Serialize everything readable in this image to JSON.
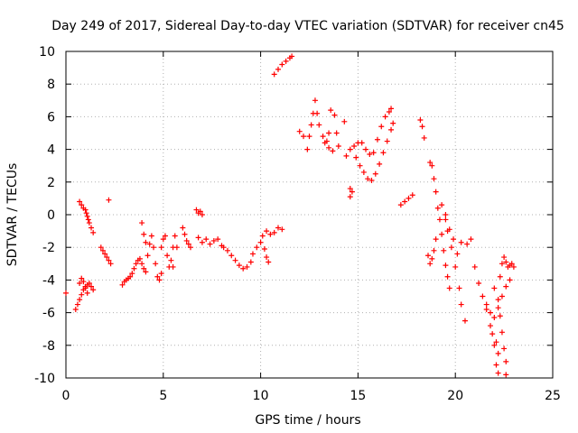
{
  "chart_data": {
    "type": "scatter",
    "title": "Day 249 of 2017, Sidereal Day-to-day VTEC variation (SDTVAR) for receiver cn45",
    "xlabel": "GPS time / hours",
    "ylabel": "SDTVAR / TECUs",
    "xlim": [
      0,
      25
    ],
    "ylim": [
      -10,
      10
    ],
    "xticks": [
      0,
      5,
      10,
      15,
      20,
      25
    ],
    "yticks": [
      -10,
      -8,
      -6,
      -4,
      -2,
      0,
      2,
      4,
      6,
      8,
      10
    ],
    "xtick_labels": [
      "0",
      "5",
      "10",
      "15",
      "20",
      "25"
    ],
    "ytick_labels": [
      "-10",
      "-8",
      "-6",
      "-4",
      "-2",
      "0",
      "2",
      "4",
      "6",
      "8",
      "10"
    ],
    "grid": true,
    "marker": "+",
    "color": "#ff0000",
    "series": [
      {
        "points": [
          [
            0.0,
            -4.8
          ],
          [
            0.5,
            -5.8
          ],
          [
            0.6,
            -5.5
          ],
          [
            0.7,
            -5.2
          ],
          [
            0.8,
            -4.9
          ],
          [
            0.9,
            -4.6
          ],
          [
            1.0,
            -4.4
          ],
          [
            1.1,
            -4.3
          ],
          [
            1.2,
            -4.2
          ],
          [
            1.3,
            -4.4
          ],
          [
            1.4,
            -4.6
          ],
          [
            0.7,
            -4.2
          ],
          [
            0.8,
            -3.9
          ],
          [
            0.9,
            -4.1
          ],
          [
            1.0,
            -4.5
          ],
          [
            1.1,
            -4.8
          ],
          [
            0.7,
            0.8
          ],
          [
            0.8,
            0.6
          ],
          [
            0.9,
            0.4
          ],
          [
            1.0,
            0.3
          ],
          [
            1.05,
            0.1
          ],
          [
            1.1,
            -0.1
          ],
          [
            1.15,
            -0.3
          ],
          [
            1.2,
            -0.5
          ],
          [
            1.3,
            -0.8
          ],
          [
            1.4,
            -1.1
          ],
          [
            1.8,
            -2.0
          ],
          [
            1.9,
            -2.2
          ],
          [
            2.0,
            -2.4
          ],
          [
            2.1,
            -2.6
          ],
          [
            2.2,
            -2.8
          ],
          [
            2.3,
            -3.0
          ],
          [
            2.2,
            0.9
          ],
          [
            2.9,
            -4.3
          ],
          [
            3.0,
            -4.1
          ],
          [
            3.1,
            -4.0
          ],
          [
            3.2,
            -3.9
          ],
          [
            3.3,
            -3.8
          ],
          [
            3.4,
            -3.6
          ],
          [
            3.5,
            -3.3
          ],
          [
            3.6,
            -3.0
          ],
          [
            3.7,
            -2.8
          ],
          [
            3.8,
            -2.7
          ],
          [
            3.9,
            -3.0
          ],
          [
            4.0,
            -3.3
          ],
          [
            4.1,
            -3.5
          ],
          [
            4.2,
            -2.5
          ],
          [
            4.3,
            -1.8
          ],
          [
            4.4,
            -1.3
          ],
          [
            4.5,
            -2.0
          ],
          [
            4.6,
            -3.0
          ],
          [
            4.7,
            -3.8
          ],
          [
            4.8,
            -4.0
          ],
          [
            4.9,
            -3.6
          ],
          [
            3.9,
            -0.5
          ],
          [
            4.0,
            -1.2
          ],
          [
            4.1,
            -1.7
          ],
          [
            4.9,
            -2.0
          ],
          [
            5.0,
            -1.5
          ],
          [
            5.1,
            -1.3
          ],
          [
            5.2,
            -2.5
          ],
          [
            5.3,
            -3.2
          ],
          [
            5.4,
            -2.8
          ],
          [
            5.5,
            -2.0
          ],
          [
            5.6,
            -1.3
          ],
          [
            5.5,
            -3.2
          ],
          [
            5.7,
            -2.0
          ],
          [
            6.0,
            -0.8
          ],
          [
            6.1,
            -1.2
          ],
          [
            6.2,
            -1.6
          ],
          [
            6.3,
            -1.8
          ],
          [
            6.4,
            -2.0
          ],
          [
            6.7,
            0.3
          ],
          [
            6.8,
            0.1
          ],
          [
            6.9,
            0.2
          ],
          [
            7.0,
            0.0
          ],
          [
            6.8,
            -1.4
          ],
          [
            7.0,
            -1.7
          ],
          [
            7.2,
            -1.5
          ],
          [
            7.4,
            -1.8
          ],
          [
            7.6,
            -1.6
          ],
          [
            7.8,
            -1.5
          ],
          [
            8.0,
            -1.9
          ],
          [
            8.1,
            -2.0
          ],
          [
            8.3,
            -2.2
          ],
          [
            8.5,
            -2.5
          ],
          [
            8.7,
            -2.8
          ],
          [
            8.9,
            -3.1
          ],
          [
            9.1,
            -3.3
          ],
          [
            9.3,
            -3.2
          ],
          [
            9.5,
            -2.9
          ],
          [
            9.6,
            -2.4
          ],
          [
            9.8,
            -2.0
          ],
          [
            10.0,
            -1.7
          ],
          [
            10.2,
            -2.1
          ],
          [
            10.3,
            -2.6
          ],
          [
            10.4,
            -2.9
          ],
          [
            10.1,
            -1.3
          ],
          [
            10.3,
            -1.0
          ],
          [
            10.5,
            -1.2
          ],
          [
            10.7,
            -1.1
          ],
          [
            10.9,
            -0.8
          ],
          [
            11.1,
            -0.9
          ],
          [
            10.7,
            8.6
          ],
          [
            10.9,
            8.9
          ],
          [
            11.1,
            9.2
          ],
          [
            11.3,
            9.4
          ],
          [
            11.5,
            9.6
          ],
          [
            11.6,
            9.7
          ],
          [
            12.0,
            5.1
          ],
          [
            12.2,
            4.8
          ],
          [
            12.4,
            4.0
          ],
          [
            12.5,
            4.8
          ],
          [
            12.6,
            5.5
          ],
          [
            12.7,
            6.2
          ],
          [
            12.8,
            7.0
          ],
          [
            12.9,
            6.2
          ],
          [
            13.0,
            5.5
          ],
          [
            13.2,
            4.8
          ],
          [
            13.4,
            4.5
          ],
          [
            13.5,
            5.0
          ],
          [
            13.6,
            6.4
          ],
          [
            13.8,
            6.1
          ],
          [
            13.9,
            5.0
          ],
          [
            13.3,
            4.4
          ],
          [
            13.5,
            4.1
          ],
          [
            13.7,
            3.9
          ],
          [
            14.0,
            4.2
          ],
          [
            14.3,
            5.7
          ],
          [
            14.4,
            3.6
          ],
          [
            14.6,
            4.0
          ],
          [
            14.8,
            4.2
          ],
          [
            15.0,
            4.4
          ],
          [
            15.2,
            4.4
          ],
          [
            14.6,
            1.6
          ],
          [
            14.7,
            1.4
          ],
          [
            14.6,
            1.1
          ],
          [
            14.9,
            3.5
          ],
          [
            15.1,
            3.0
          ],
          [
            15.3,
            2.6
          ],
          [
            15.5,
            2.2
          ],
          [
            15.7,
            2.1
          ],
          [
            15.9,
            2.5
          ],
          [
            16.1,
            3.1
          ],
          [
            16.3,
            3.8
          ],
          [
            16.5,
            4.5
          ],
          [
            16.7,
            5.2
          ],
          [
            16.8,
            5.6
          ],
          [
            15.4,
            4.0
          ],
          [
            15.6,
            3.7
          ],
          [
            15.8,
            3.8
          ],
          [
            16.0,
            4.6
          ],
          [
            16.2,
            5.4
          ],
          [
            16.4,
            6.0
          ],
          [
            16.6,
            6.3
          ],
          [
            16.7,
            6.5
          ],
          [
            17.2,
            0.6
          ],
          [
            17.4,
            0.8
          ],
          [
            17.6,
            1.0
          ],
          [
            17.8,
            1.2
          ],
          [
            18.2,
            5.8
          ],
          [
            18.3,
            5.4
          ],
          [
            18.4,
            4.7
          ],
          [
            18.6,
            -2.5
          ],
          [
            18.7,
            -3.0
          ],
          [
            18.8,
            -2.7
          ],
          [
            18.9,
            -2.2
          ],
          [
            19.0,
            -1.5
          ],
          [
            18.7,
            3.2
          ],
          [
            18.8,
            3.0
          ],
          [
            18.9,
            2.2
          ],
          [
            19.0,
            1.4
          ],
          [
            19.1,
            0.4
          ],
          [
            19.2,
            -0.3
          ],
          [
            19.3,
            -1.2
          ],
          [
            19.4,
            -2.2
          ],
          [
            19.5,
            -3.1
          ],
          [
            19.6,
            -3.8
          ],
          [
            19.7,
            -4.5
          ],
          [
            19.3,
            0.6
          ],
          [
            19.5,
            0.0
          ],
          [
            19.6,
            -1.0
          ],
          [
            19.8,
            -2.0
          ],
          [
            20.0,
            -3.2
          ],
          [
            20.2,
            -4.5
          ],
          [
            20.3,
            -5.5
          ],
          [
            20.5,
            -6.5
          ],
          [
            19.5,
            -0.3
          ],
          [
            19.7,
            -0.9
          ],
          [
            19.9,
            -1.5
          ],
          [
            20.1,
            -2.4
          ],
          [
            20.3,
            -1.7
          ],
          [
            20.6,
            -1.8
          ],
          [
            20.8,
            -1.5
          ],
          [
            21.0,
            -3.2
          ],
          [
            21.2,
            -4.2
          ],
          [
            21.4,
            -5.0
          ],
          [
            21.6,
            -5.8
          ],
          [
            21.8,
            -6.8
          ],
          [
            22.0,
            -8.0
          ],
          [
            22.1,
            -9.2
          ],
          [
            22.2,
            -9.7
          ],
          [
            21.6,
            -5.5
          ],
          [
            21.8,
            -6.0
          ],
          [
            22.0,
            -6.3
          ],
          [
            22.2,
            -5.7
          ],
          [
            22.4,
            -5.0
          ],
          [
            22.6,
            -4.4
          ],
          [
            22.8,
            -4.0
          ],
          [
            21.9,
            -7.3
          ],
          [
            22.1,
            -7.8
          ],
          [
            22.2,
            -8.5
          ],
          [
            22.0,
            -4.5
          ],
          [
            22.2,
            -5.2
          ],
          [
            22.3,
            -6.2
          ],
          [
            22.4,
            -7.2
          ],
          [
            22.5,
            -8.2
          ],
          [
            22.6,
            -9.0
          ],
          [
            22.6,
            -9.8
          ],
          [
            22.3,
            -3.8
          ],
          [
            22.4,
            -3.0
          ],
          [
            22.5,
            -2.6
          ],
          [
            22.6,
            -2.9
          ],
          [
            22.7,
            -3.2
          ],
          [
            22.8,
            -3.1
          ],
          [
            22.9,
            -3.0
          ],
          [
            23.0,
            -3.2
          ]
        ]
      }
    ]
  }
}
